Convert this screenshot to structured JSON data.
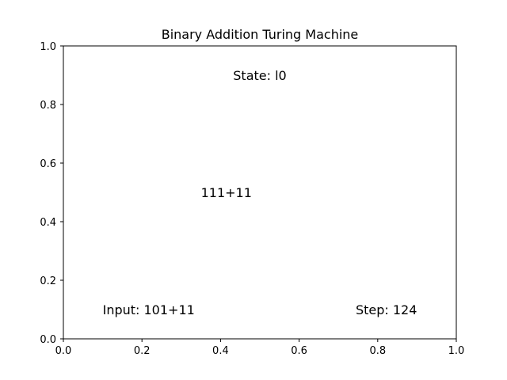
{
  "chart_data": {
    "type": "text",
    "title": "Binary Addition Turing Machine",
    "xlabel": "",
    "ylabel": "",
    "xlim": [
      0,
      1
    ],
    "ylim": [
      0,
      1
    ],
    "grid": false,
    "xticks": [
      0.0,
      0.2,
      0.4,
      0.6,
      0.8,
      1.0
    ],
    "yticks": [
      0.0,
      0.2,
      0.4,
      0.6,
      0.8,
      1.0
    ],
    "xtick_labels": [
      "0.0",
      "0.2",
      "0.4",
      "0.6",
      "0.8",
      "1.0"
    ],
    "ytick_labels": [
      "0.0",
      "0.2",
      "0.4",
      "0.6",
      "0.8",
      "1.0"
    ],
    "annotations": [
      {
        "name": "state-label",
        "text": "State: l0",
        "x": 0.5,
        "y": 0.9,
        "anchor": "middle"
      },
      {
        "name": "tape-label",
        "text": "111+11",
        "x": 0.35,
        "y": 0.5,
        "anchor": "start"
      },
      {
        "name": "input-label",
        "text": "Input: 101+11",
        "x": 0.1,
        "y": 0.1,
        "anchor": "start"
      },
      {
        "name": "step-label",
        "text": "Step: 124",
        "x": 0.9,
        "y": 0.1,
        "anchor": "end"
      }
    ],
    "colors": {
      "axis": "#000000",
      "background": "#ffffff",
      "text": "#000000"
    }
  }
}
